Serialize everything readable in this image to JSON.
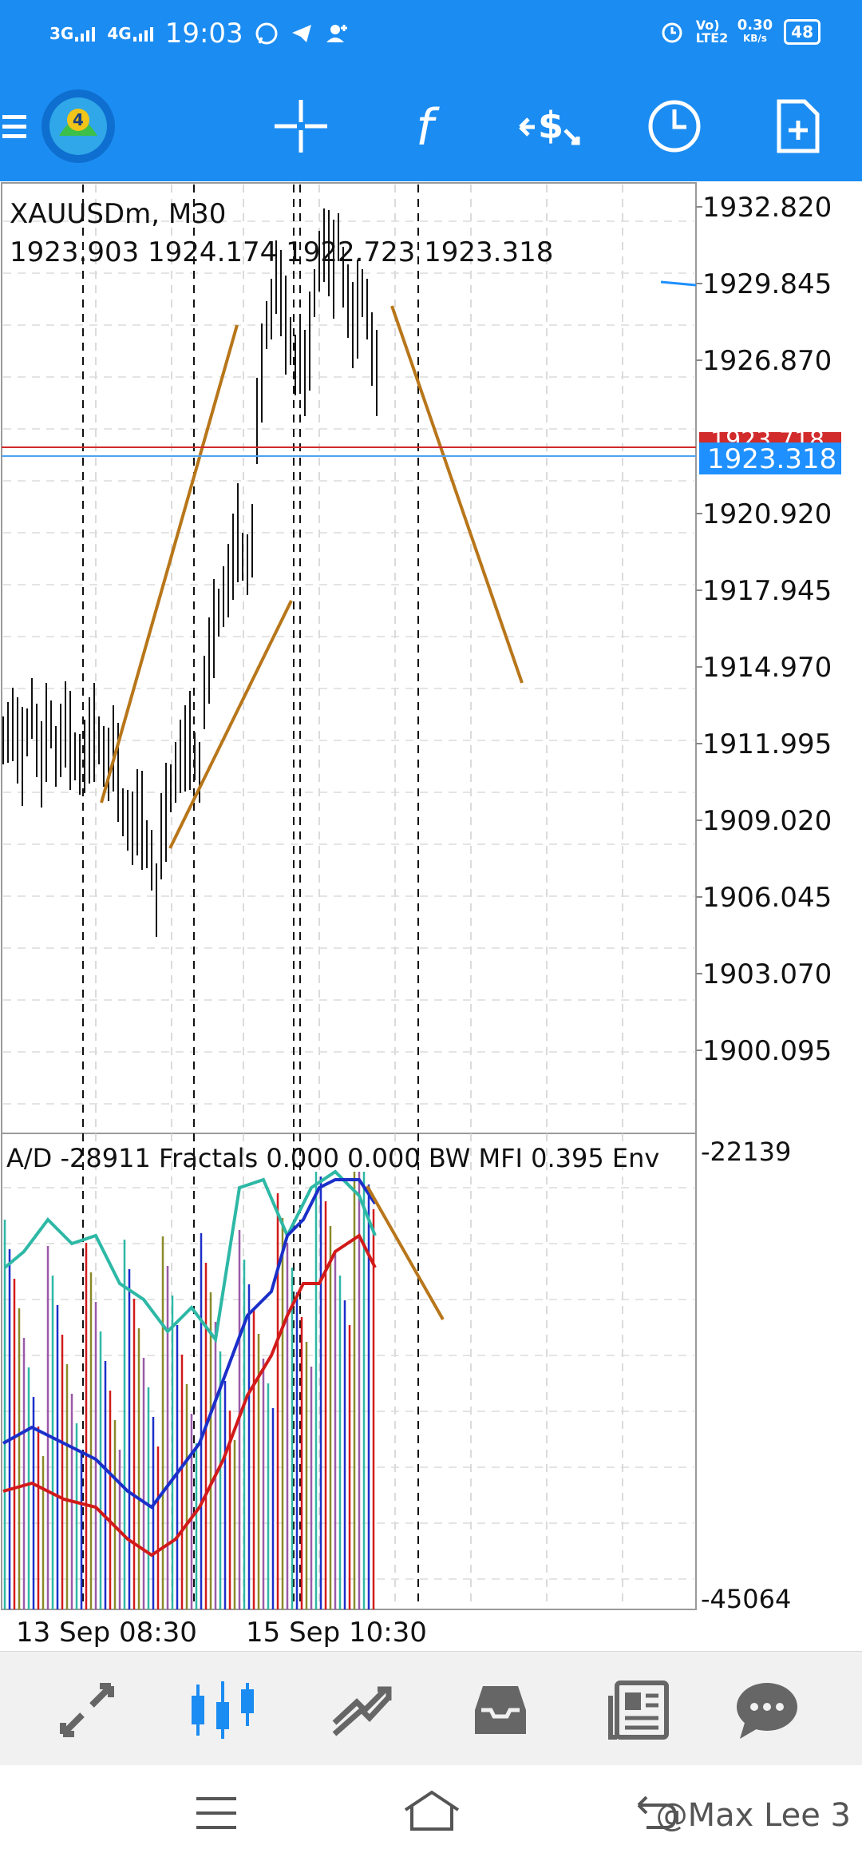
{
  "status_bar": {
    "net1": "3G",
    "net2": "4G",
    "time": "19:03",
    "volte": "Vo) LTE2",
    "speed": "0.30",
    "speed_unit": "KB/s",
    "battery": "48"
  },
  "toolbar": {
    "icons": [
      "menu-icon",
      "metatrader-logo",
      "crosshair-icon",
      "indicators-f-icon",
      "trade-icon",
      "period-clock-icon",
      "new-document-icon"
    ]
  },
  "chart": {
    "symbol_label": "XAUUSDm, M30",
    "ohlc_line": "1923.903 1924.174 1922.723 1923.318",
    "price_levels": [
      "1932.820",
      "1929.845",
      "1926.870",
      "1923.318",
      "1920.920",
      "1917.945",
      "1914.970",
      "1911.995",
      "1909.020",
      "1906.045",
      "1903.070",
      "1900.095"
    ],
    "ask_tag": "1923.718",
    "bid_tag": "1923.318",
    "indicator_label": "A/D -28911 Fractals 0.000 0.000 BW MFI 0.395 Env",
    "indicator_top": "-22139",
    "indicator_bottom": "-45064",
    "time_labels": [
      "13 Sep 08:30",
      "15 Sep 10:30"
    ],
    "colors": {
      "toolbar": "#1b8cf2",
      "trendline": "#b8761a",
      "ask_line": "#d22b2b",
      "bid_line": "#4ea3f0",
      "bid_tag_bg": "#1e90ff",
      "ma_blue": "#1b2fc9",
      "ma_red": "#d21a1a",
      "mfi_teal": "#2eb8a6"
    }
  },
  "bottom_nav": {
    "items": [
      "quotes-icon",
      "chart-icon",
      "trade-icon",
      "history-icon",
      "news-icon",
      "messages-icon"
    ],
    "active": "chart-icon"
  },
  "system_nav": {
    "watermark": "@Max Lee 3"
  }
}
